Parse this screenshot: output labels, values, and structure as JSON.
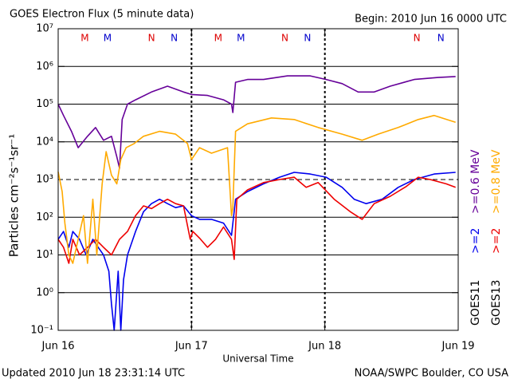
{
  "chart_data": {
    "type": "line",
    "title": "GOES Electron Flux (5 minute data)",
    "subtitle": "Begin: 2010 Jun 16 0000 UTC",
    "xlabel": "Universal Time",
    "ylabel": "Particles cm⁻²s⁻¹sr⁻¹",
    "footer_left": "Updated 2010 Jun 18 23:31:14 UTC",
    "footer_right": "NOAA/SWPC Boulder, CO USA",
    "log_y": true,
    "grid": true,
    "threshold_line": 1000,
    "xlim": [
      0,
      3
    ],
    "xticks": [
      {
        "value": 0,
        "label": "Jun 16"
      },
      {
        "value": 1,
        "label": "Jun 17"
      },
      {
        "value": 2,
        "label": "Jun 18"
      },
      {
        "value": 3,
        "label": "Jun 19"
      }
    ],
    "ylim": [
      0.1,
      10000000
    ],
    "yticks": [
      {
        "value": 0.1,
        "label": "10⁻¹"
      },
      {
        "value": 1,
        "label": "10⁰"
      },
      {
        "value": 10,
        "label": "10¹"
      },
      {
        "value": 100,
        "label": "10²"
      },
      {
        "value": 1000,
        "label": "10³"
      },
      {
        "value": 10000,
        "label": "10⁴"
      },
      {
        "value": 100000,
        "label": "10⁵"
      },
      {
        "value": 1000000,
        "label": "10⁶"
      },
      {
        "value": 10000000,
        "label": "10⁷"
      }
    ],
    "satellites": [
      "GOES11",
      "GOES13"
    ],
    "series": [
      {
        "name": ">=2",
        "color": "#0000ee",
        "x": [
          0,
          0.04,
          0.08,
          0.11,
          0.16,
          0.21,
          0.26,
          0.3,
          0.34,
          0.38,
          0.4,
          0.42,
          0.45,
          0.47,
          0.49,
          0.52,
          0.58,
          0.64,
          0.7,
          0.76,
          0.82,
          0.88,
          0.94,
          1.0,
          1.06,
          1.15,
          1.24,
          1.3,
          1.33,
          1.42,
          1.54,
          1.66,
          1.77,
          1.89,
          2.01,
          2.13,
          2.22,
          2.31,
          2.43,
          2.55,
          2.67,
          2.82,
          2.98
        ],
        "values": [
          26,
          42,
          16,
          42,
          26,
          10,
          26,
          16,
          10,
          3.7,
          0.5,
          0.1,
          3.7,
          0.1,
          2.2,
          10,
          42,
          140,
          230,
          300,
          230,
          180,
          200,
          110,
          88,
          88,
          70,
          33,
          300,
          480,
          770,
          1150,
          1550,
          1400,
          1150,
          620,
          300,
          230,
          300,
          620,
          1000,
          1400,
          1550
        ]
      },
      {
        "name": ">=0.6 MeV",
        "color": "#660099",
        "x": [
          0,
          0.04,
          0.1,
          0.15,
          0.22,
          0.28,
          0.34,
          0.4,
          0.44,
          0.46,
          0.48,
          0.52,
          0.58,
          0.7,
          0.82,
          0.94,
          1.0,
          1.12,
          1.24,
          1.3,
          1.31,
          1.33,
          1.42,
          1.54,
          1.72,
          1.89,
          2.01,
          2.13,
          2.25,
          2.37,
          2.49,
          2.67,
          2.85,
          2.98
        ],
        "values": [
          100000,
          50000,
          19000,
          7000,
          14000,
          24000,
          11000,
          14000,
          4000,
          2000,
          39000,
          100000,
          130000,
          210000,
          300000,
          210000,
          180000,
          170000,
          130000,
          100000,
          60000,
          380000,
          450000,
          450000,
          560000,
          560000,
          450000,
          350000,
          210000,
          210000,
          300000,
          450000,
          510000,
          540000
        ]
      },
      {
        "name": ">=2",
        "color": "#ee0000",
        "x": [
          0,
          0.04,
          0.08,
          0.11,
          0.16,
          0.22,
          0.28,
          0.34,
          0.4,
          0.46,
          0.52,
          0.58,
          0.64,
          0.7,
          0.76,
          0.82,
          0.88,
          0.94,
          0.99,
          1.01,
          1.06,
          1.12,
          1.18,
          1.24,
          1.3,
          1.32,
          1.34,
          1.42,
          1.54,
          1.66,
          1.77,
          1.86,
          1.95,
          2.07,
          2.19,
          2.28,
          2.37,
          2.49,
          2.61,
          2.7,
          2.79,
          2.91,
          2.98
        ],
        "values": [
          26,
          16,
          6,
          26,
          10,
          16,
          26,
          16,
          10,
          26,
          42,
          110,
          200,
          170,
          230,
          300,
          230,
          200,
          26,
          42,
          28,
          16,
          26,
          55,
          26,
          7.6,
          300,
          530,
          830,
          1000,
          1150,
          620,
          830,
          300,
          140,
          88,
          230,
          360,
          650,
          1150,
          1000,
          770,
          620
        ]
      },
      {
        "name": ">=0.8 MeV",
        "color": "#ffaa00",
        "x": [
          0,
          0.03,
          0.05,
          0.08,
          0.11,
          0.15,
          0.19,
          0.22,
          0.26,
          0.29,
          0.33,
          0.36,
          0.4,
          0.44,
          0.47,
          0.51,
          0.57,
          0.64,
          0.76,
          0.88,
          0.97,
          1.0,
          1.06,
          1.15,
          1.27,
          1.3,
          1.31,
          1.33,
          1.42,
          1.6,
          1.77,
          1.95,
          2.13,
          2.28,
          2.4,
          2.55,
          2.7,
          2.82,
          2.98
        ],
        "values": [
          1600,
          480,
          70,
          10,
          6,
          26,
          110,
          6,
          300,
          10,
          770,
          5500,
          1300,
          770,
          3400,
          7000,
          9000,
          14000,
          19000,
          16000,
          9000,
          3400,
          7000,
          5000,
          7000,
          110,
          180,
          19000,
          30000,
          43000,
          39000,
          24000,
          16000,
          11000,
          16000,
          24000,
          39000,
          50000,
          33000
        ]
      }
    ],
    "markers": [
      {
        "x": 0.2,
        "label": "M",
        "color": "#dd0000"
      },
      {
        "x": 0.37,
        "label": "M",
        "color": "#0000cc"
      },
      {
        "x": 0.7,
        "label": "N",
        "color": "#dd0000"
      },
      {
        "x": 0.87,
        "label": "N",
        "color": "#0000cc"
      },
      {
        "x": 1.2,
        "label": "M",
        "color": "#dd0000"
      },
      {
        "x": 1.37,
        "label": "M",
        "color": "#0000cc"
      },
      {
        "x": 1.7,
        "label": "N",
        "color": "#dd0000"
      },
      {
        "x": 1.87,
        "label": "N",
        "color": "#0000cc"
      },
      {
        "x": 2.69,
        "label": "N",
        "color": "#dd0000"
      },
      {
        "x": 2.87,
        "label": "N",
        "color": "#0000cc"
      }
    ]
  }
}
